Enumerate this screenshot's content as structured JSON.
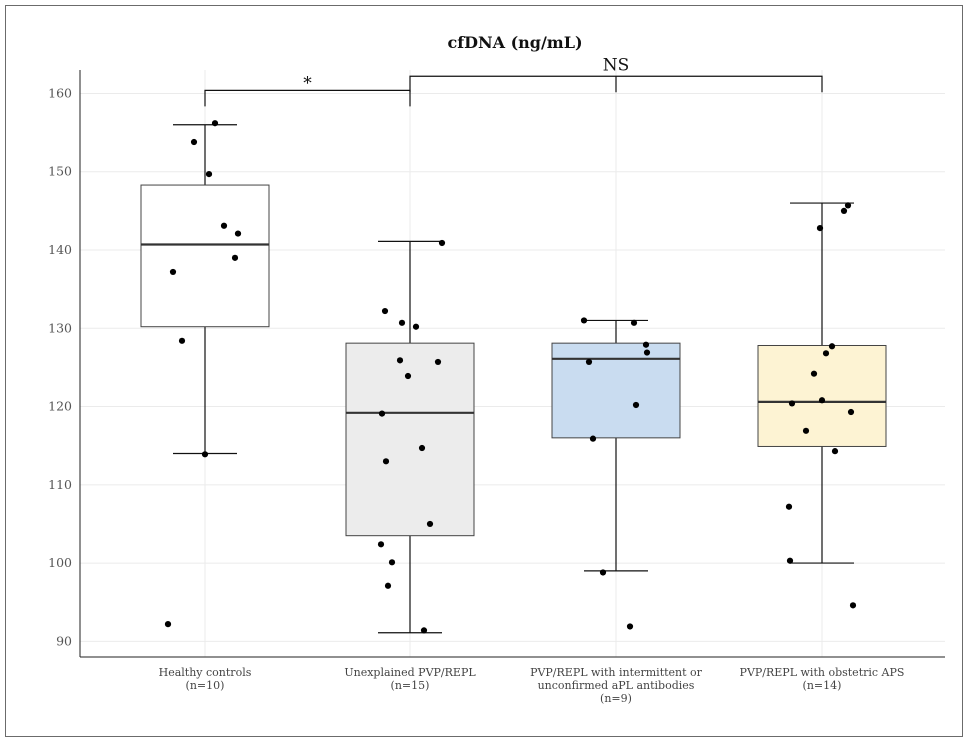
{
  "chart_data": {
    "type": "boxplot",
    "title": "cfDNA (ng/mL)",
    "xlabel": "",
    "ylabel": "",
    "ylim": [
      88,
      163
    ],
    "yticks": [
      90,
      100,
      110,
      120,
      130,
      140,
      150,
      160
    ],
    "grid": true,
    "groups": [
      {
        "label_lines": [
          "Healthy controls",
          "(n=10)"
        ],
        "fill": "#ffffff",
        "whisker_low": 114,
        "q1": 130.2,
        "median": 140.7,
        "q3": 148.3,
        "whisker_high": 156,
        "points": [
          156.2,
          153.8,
          149.7,
          143.1,
          142.1,
          139,
          137.2,
          128.4,
          113.9,
          92.2
        ]
      },
      {
        "label_lines": [
          "Unexplained PVP/REPL",
          "(n=15)"
        ],
        "fill": "#ececec",
        "whisker_low": 91.1,
        "q1": 103.5,
        "median": 119.2,
        "q3": 128.1,
        "whisker_high": 141.1,
        "points": [
          140.9,
          132.2,
          130.7,
          130.2,
          125.9,
          125.7,
          123.9,
          119.1,
          114.7,
          113,
          105,
          102.4,
          100.1,
          97.1,
          91.4
        ]
      },
      {
        "label_lines": [
          "PVP/REPL with intermittent or",
          "unconfirmed aPL antibodies",
          "(n=9)"
        ],
        "fill": "#c9dcf0",
        "whisker_low": 99,
        "q1": 116,
        "median": 126.1,
        "q3": 128.1,
        "whisker_high": 131,
        "points": [
          131,
          130.7,
          127.9,
          126.9,
          125.7,
          120.2,
          115.9,
          98.8,
          91.9
        ]
      },
      {
        "label_lines": [
          "PVP/REPL with obstetric APS",
          "(n=14)"
        ],
        "fill": "#fdf3d3",
        "whisker_low": 100,
        "q1": 114.9,
        "median": 120.6,
        "q3": 127.8,
        "whisker_high": 146,
        "points": [
          145.7,
          145,
          142.8,
          127.7,
          126.8,
          124.2,
          120.8,
          120.4,
          119.3,
          116.9,
          114.3,
          107.2,
          100.3,
          94.6
        ]
      }
    ],
    "annotations": [
      {
        "text": "*",
        "from_group": 0,
        "to_group": 1,
        "y": 160.4
      },
      {
        "text": "NS",
        "from_group": 1,
        "to_groups": [
          2,
          3
        ],
        "y": 162.2
      }
    ]
  }
}
